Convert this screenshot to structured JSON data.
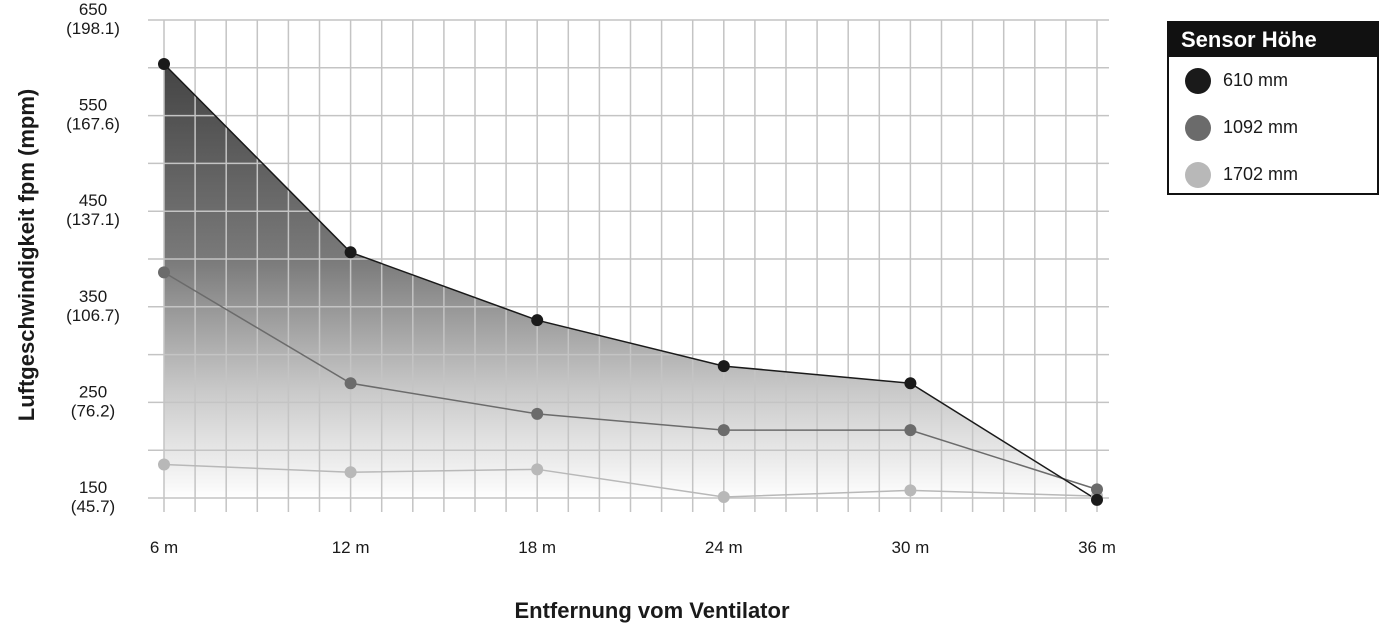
{
  "chart_data": {
    "type": "area",
    "xlabel": "Entfernung vom Ventilator",
    "ylabel": "Luftgeschwindigkeit fpm (mpm)",
    "categories": [
      "6 m",
      "12 m",
      "18 m",
      "24 m",
      "30 m",
      "36 m"
    ],
    "x": [
      6,
      12,
      18,
      24,
      30,
      36
    ],
    "xlim": [
      6,
      36
    ],
    "ylim": [
      100,
      650
    ],
    "y_ticks": [
      {
        "value": 650,
        "fpm": "650",
        "mpm": "(198.1)"
      },
      {
        "value": 550,
        "fpm": "550",
        "mpm": "(167.6)"
      },
      {
        "value": 450,
        "fpm": "450",
        "mpm": "(137.1)"
      },
      {
        "value": 350,
        "fpm": "350",
        "mpm": "(106.7)"
      },
      {
        "value": 250,
        "fpm": "250",
        "mpm": "(76.2)"
      },
      {
        "value": 150,
        "fpm": "150",
        "mpm": "(45.7)"
      }
    ],
    "grid": true,
    "legend_position": "top-right",
    "legend_title": "Sensor Höhe",
    "series": [
      {
        "name": "610 mm",
        "color": "#1a1a1a",
        "values": [
          604,
          407,
          336,
          288,
          270,
          148
        ]
      },
      {
        "name": "1092 mm",
        "color": "#6b6b6b",
        "values": [
          386,
          270,
          238,
          221,
          221,
          159
        ]
      },
      {
        "name": "1702 mm",
        "color": "#b8b8b8",
        "values": [
          185,
          177,
          180,
          151,
          158,
          152
        ]
      }
    ]
  }
}
